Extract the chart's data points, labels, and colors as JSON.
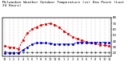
{
  "title": "Milwaukee Weather Outdoor Temperature (vs) Dew Point (Last 24 Hours)",
  "title_fontsize": 3.2,
  "figsize": [
    1.6,
    0.87
  ],
  "dpi": 100,
  "background_color": "#ffffff",
  "temp_color": "#dd0000",
  "dewpoint_color": "#0000cc",
  "extra_color": "#000000",
  "ylim": [
    15,
    80
  ],
  "yticks_right": [
    80,
    70,
    60,
    50,
    40,
    30,
    20
  ],
  "ylabel_right": [
    "80",
    "70",
    "60",
    "50",
    "40",
    "30",
    "20"
  ],
  "x": [
    0,
    1,
    2,
    3,
    4,
    5,
    6,
    7,
    8,
    9,
    10,
    11,
    12,
    13,
    14,
    15,
    16,
    17,
    18,
    19,
    20,
    21,
    22,
    23
  ],
  "temp": [
    32,
    30,
    29,
    27,
    42,
    54,
    60,
    64,
    67,
    69,
    70,
    68,
    63,
    57,
    52,
    47,
    44,
    41,
    39,
    37,
    36,
    34,
    33,
    32
  ],
  "dewpoint": [
    20,
    20,
    20,
    20,
    25,
    30,
    35,
    37,
    37,
    37,
    36,
    35,
    35,
    35,
    35,
    35,
    38,
    38,
    37,
    37,
    38,
    38,
    38,
    37
  ],
  "extra": [
    22,
    21,
    21,
    21,
    21,
    21,
    21,
    21,
    21,
    21,
    21,
    21,
    21,
    21,
    21,
    21,
    21,
    21,
    21,
    21,
    21,
    21,
    21,
    21
  ],
  "xtick_labels": [
    "12",
    "1",
    "2",
    "3",
    "4",
    "5",
    "6",
    "7",
    "8",
    "9",
    "10",
    "11",
    "12",
    "1",
    "2",
    "3",
    "4",
    "5",
    "6",
    "7",
    "8",
    "9",
    "10",
    "11"
  ],
  "xtick_fontsize": 2.5,
  "ytick_fontsize": 2.8,
  "line_width": 0.7,
  "marker_size": 1.0,
  "grid_color": "#999999",
  "grid_lw": 0.25
}
